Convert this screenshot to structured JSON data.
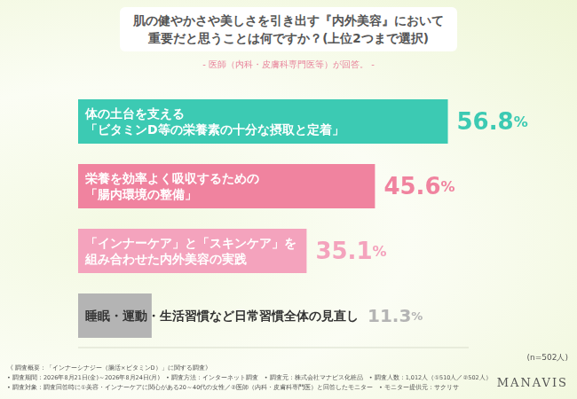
{
  "chart_data": {
    "type": "bar",
    "orientation": "horizontal",
    "title": "肌の健やかさや美しさを引き出す『内外美容』において\n重要だと思うことは何ですか？(上位2つまで選択)",
    "subtitle": "- 医師（内科・皮膚科専門医等）が回答。 -",
    "categories": [
      "体の土台を支える\n「ビタミンD等の栄養素の十分な摂取と定着」",
      "栄養を効率よく吸収するための\n「腸内環境の整備」",
      "「インナーケア」と「スキンケア」を\n組み合わせた内外美容の実践",
      "睡眠・運動・生活習慣など日常習慣全体の見直し"
    ],
    "values": [
      56.8,
      45.6,
      35.1,
      11.3
    ],
    "value_labels": [
      "56.8%",
      "45.6%",
      "35.1%",
      "11.3%"
    ],
    "colors": [
      "#3ccab3",
      "#f0839f",
      "#f4a3bd",
      "#b4b4b4"
    ],
    "xlim": [
      0,
      60
    ],
    "data_labels": true,
    "tick_labels": false,
    "grid": false,
    "annotations": [
      "(n=502人)",
      "《 調査概要：「インナーシナジー（腸活×ビタミンD）」に関する調査》",
      "• 調査期間：2026年8月21日(金)～2026年8月24日(月)　• 調査方法：インターネット調査　• 調査元：株式会社マナビス化粧品　• 調査人数：1,012人（①510人／②502人）",
      "• 調査対象：調査回答時に①美容・インナーケアに関心がある20～40代の女性／②医師（内科・皮膚科専門医）と回答したモニター　• モニター提供元：サクリサ",
      "MANAVIS"
    ]
  }
}
